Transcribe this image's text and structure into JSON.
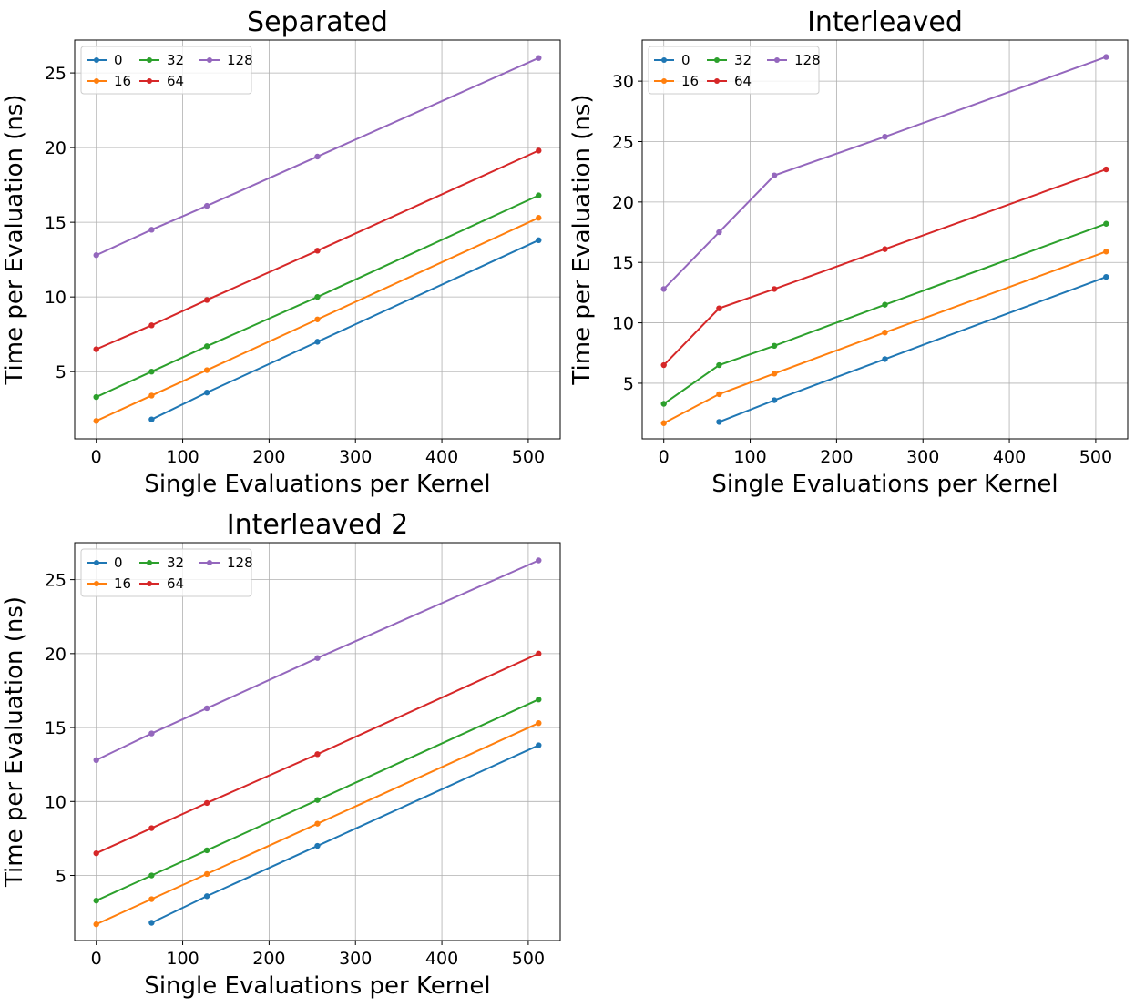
{
  "chart_data": [
    {
      "type": "line",
      "title": "Separated",
      "xlabel": "Single Evaluations per Kernel",
      "ylabel": "Time per Evaluation (ns)",
      "xlim": [
        -25,
        537
      ],
      "ylim": [
        0.5,
        27.2
      ],
      "xticks": [
        0,
        100,
        200,
        300,
        400,
        500
      ],
      "yticks": [
        5,
        10,
        15,
        20,
        25
      ],
      "grid": true,
      "legend_position": "top-left",
      "series": [
        {
          "name": "0",
          "color": "#1f77b4",
          "x": [
            64,
            128,
            256,
            512
          ],
          "y": [
            1.8,
            3.6,
            7.0,
            13.8
          ]
        },
        {
          "name": "16",
          "color": "#ff7f0e",
          "x": [
            0,
            64,
            128,
            256,
            512
          ],
          "y": [
            1.7,
            3.4,
            5.1,
            8.5,
            15.3
          ]
        },
        {
          "name": "32",
          "color": "#2ca02c",
          "x": [
            0,
            64,
            128,
            256,
            512
          ],
          "y": [
            3.3,
            5.0,
            6.7,
            10.0,
            16.8
          ]
        },
        {
          "name": "64",
          "color": "#d62728",
          "x": [
            0,
            64,
            128,
            256,
            512
          ],
          "y": [
            6.5,
            8.1,
            9.8,
            13.1,
            19.8
          ]
        },
        {
          "name": "128",
          "color": "#9467bd",
          "x": [
            0,
            64,
            128,
            256,
            512
          ],
          "y": [
            12.8,
            14.5,
            16.1,
            19.4,
            26.0
          ]
        }
      ]
    },
    {
      "type": "line",
      "title": "Interleaved",
      "xlabel": "Single Evaluations per Kernel",
      "ylabel": "Time per Evaluation (ns)",
      "xlim": [
        -25,
        537
      ],
      "ylim": [
        0.4,
        33.4
      ],
      "xticks": [
        0,
        100,
        200,
        300,
        400,
        500
      ],
      "yticks": [
        5,
        10,
        15,
        20,
        25,
        30
      ],
      "grid": true,
      "legend_position": "top-left",
      "series": [
        {
          "name": "0",
          "color": "#1f77b4",
          "x": [
            64,
            128,
            256,
            512
          ],
          "y": [
            1.8,
            3.6,
            7.0,
            13.8
          ]
        },
        {
          "name": "16",
          "color": "#ff7f0e",
          "x": [
            0,
            64,
            128,
            256,
            512
          ],
          "y": [
            1.7,
            4.1,
            5.8,
            9.2,
            15.9
          ]
        },
        {
          "name": "32",
          "color": "#2ca02c",
          "x": [
            0,
            64,
            128,
            256,
            512
          ],
          "y": [
            3.3,
            6.5,
            8.1,
            11.5,
            18.2
          ]
        },
        {
          "name": "64",
          "color": "#d62728",
          "x": [
            0,
            64,
            128,
            256,
            512
          ],
          "y": [
            6.5,
            11.2,
            12.8,
            16.1,
            22.7
          ]
        },
        {
          "name": "128",
          "color": "#9467bd",
          "x": [
            0,
            64,
            128,
            256,
            512
          ],
          "y": [
            12.8,
            17.5,
            22.2,
            25.4,
            32.0
          ]
        }
      ]
    },
    {
      "type": "line",
      "title": "Interleaved 2",
      "xlabel": "Single Evaluations per Kernel",
      "ylabel": "Time per Evaluation (ns)",
      "xlim": [
        -25,
        537
      ],
      "ylim": [
        0.6,
        27.5
      ],
      "xticks": [
        0,
        100,
        200,
        300,
        400,
        500
      ],
      "yticks": [
        5,
        10,
        15,
        20,
        25
      ],
      "grid": true,
      "legend_position": "top-left",
      "series": [
        {
          "name": "0",
          "color": "#1f77b4",
          "x": [
            64,
            128,
            256,
            512
          ],
          "y": [
            1.8,
            3.6,
            7.0,
            13.8
          ]
        },
        {
          "name": "16",
          "color": "#ff7f0e",
          "x": [
            0,
            64,
            128,
            256,
            512
          ],
          "y": [
            1.7,
            3.4,
            5.1,
            8.5,
            15.3
          ]
        },
        {
          "name": "32",
          "color": "#2ca02c",
          "x": [
            0,
            64,
            128,
            256,
            512
          ],
          "y": [
            3.3,
            5.0,
            6.7,
            10.1,
            16.9
          ]
        },
        {
          "name": "64",
          "color": "#d62728",
          "x": [
            0,
            64,
            128,
            256,
            512
          ],
          "y": [
            6.5,
            8.2,
            9.9,
            13.2,
            20.0
          ]
        },
        {
          "name": "128",
          "color": "#9467bd",
          "x": [
            0,
            64,
            128,
            256,
            512
          ],
          "y": [
            12.8,
            14.6,
            16.3,
            19.7,
            26.3
          ]
        }
      ]
    }
  ]
}
